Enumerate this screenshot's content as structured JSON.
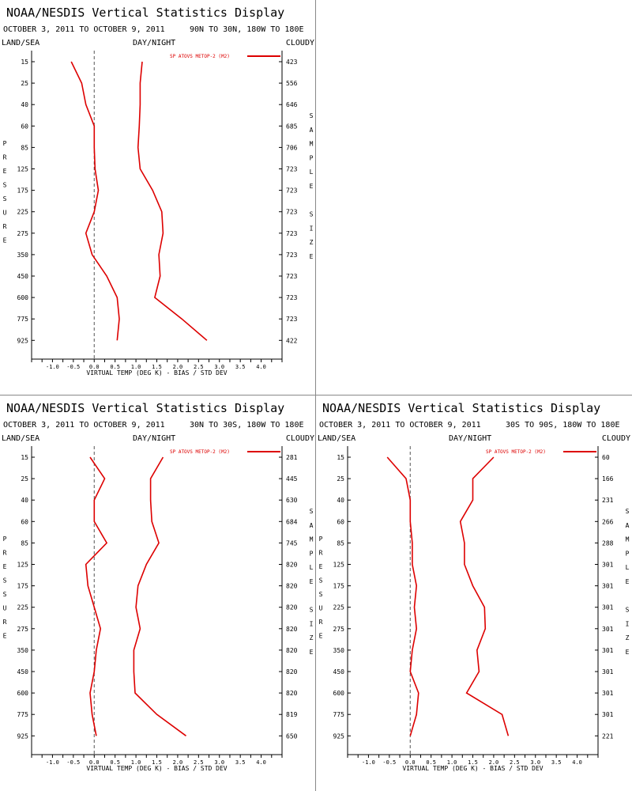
{
  "colors": {
    "series": "#dd0000",
    "axis": "#000000",
    "zero_line": "#555555"
  },
  "panels": [
    {
      "title": "NOAA/NESDIS Vertical Statistics Display",
      "dates": "OCTOBER 3, 2011 TO OCTOBER 9, 2011",
      "region": "90N TO 30N, 180W TO 180E",
      "land_sea": "LAND/SEA",
      "day_night": "DAY/NIGHT",
      "cloudy": "CLOUDY",
      "legend": "SP ATOVS METOP-2 (M2)",
      "xlabel": "VIRTUAL TEMP (DEG K) - BIAS / STD DEV",
      "ylabel_left": "PRESSURE",
      "ylabel_right": "SAMPLE SIZE"
    },
    {
      "title": "NOAA/NESDIS Vertical Statistics Display",
      "dates": "OCTOBER 3, 2011 TO OCTOBER 9, 2011",
      "region": "30N TO 30S, 180W TO 180E",
      "land_sea": "LAND/SEA",
      "day_night": "DAY/NIGHT",
      "cloudy": "CLOUDY",
      "legend": "SP ATOVS METOP-2 (M2)",
      "xlabel": "VIRTUAL TEMP (DEG K) - BIAS / STD DEV",
      "ylabel_left": "PRESSURE",
      "ylabel_right": "SAMPLE SIZE"
    },
    {
      "title": "NOAA/NESDIS Vertical Statistics Display",
      "dates": "OCTOBER 3, 2011 TO OCTOBER 9, 2011",
      "region": "30S TO 90S, 180W TO 180E",
      "land_sea": "LAND/SEA",
      "day_night": "DAY/NIGHT",
      "cloudy": "CLOUDY",
      "legend": "SP ATOVS METOP-2 (M2)",
      "xlabel": "VIRTUAL TEMP (DEG K) - BIAS / STD DEV",
      "ylabel_left": "PRESSURE",
      "ylabel_right": "SAMPLE SIZE"
    }
  ],
  "chart_data": [
    {
      "type": "line",
      "xlim": [
        -1.5,
        4.5
      ],
      "xticks": [
        -1.0,
        -0.5,
        0.0,
        0.5,
        1.0,
        1.5,
        2.0,
        2.5,
        3.0,
        3.5,
        4.0
      ],
      "pressure_levels": [
        15,
        25,
        40,
        60,
        85,
        125,
        175,
        225,
        275,
        350,
        450,
        600,
        775,
        925
      ],
      "series": [
        {
          "name": "bias",
          "values": [
            -0.55,
            -0.3,
            -0.2,
            0.0,
            0.0,
            0.02,
            0.1,
            0.0,
            -0.2,
            -0.05,
            0.3,
            0.55,
            0.6,
            0.55
          ]
        },
        {
          "name": "std_dev",
          "values": [
            1.15,
            1.1,
            1.1,
            1.08,
            1.05,
            1.1,
            1.4,
            1.62,
            1.65,
            1.55,
            1.58,
            1.45,
            2.1,
            2.7
          ]
        }
      ],
      "sample_size": [
        423,
        556,
        646,
        685,
        706,
        723,
        723,
        723,
        723,
        723,
        723,
        723,
        723,
        422
      ]
    },
    {
      "type": "line",
      "xlim": [
        -1.5,
        4.5
      ],
      "xticks": [
        -1.0,
        -0.5,
        0.0,
        0.5,
        1.0,
        1.5,
        2.0,
        2.5,
        3.0,
        3.5,
        4.0
      ],
      "pressure_levels": [
        15,
        25,
        40,
        60,
        85,
        125,
        175,
        225,
        275,
        350,
        450,
        600,
        775,
        925
      ],
      "series": [
        {
          "name": "bias",
          "values": [
            -0.1,
            0.25,
            0.0,
            0.0,
            0.3,
            -0.2,
            -0.15,
            0.0,
            0.15,
            0.05,
            0.0,
            -0.1,
            -0.05,
            0.05
          ]
        },
        {
          "name": "std_dev",
          "values": [
            1.65,
            1.35,
            1.35,
            1.38,
            1.55,
            1.25,
            1.05,
            1.0,
            1.1,
            0.95,
            0.95,
            0.98,
            1.5,
            2.2
          ]
        }
      ],
      "sample_size": [
        281,
        445,
        630,
        684,
        745,
        820,
        820,
        820,
        820,
        820,
        820,
        820,
        819,
        650
      ]
    },
    {
      "type": "line",
      "xlim": [
        -1.5,
        4.5
      ],
      "xticks": [
        -1.0,
        -0.5,
        0.0,
        0.5,
        1.0,
        1.5,
        2.0,
        2.5,
        3.0,
        3.5,
        4.0
      ],
      "pressure_levels": [
        15,
        25,
        40,
        60,
        85,
        125,
        175,
        225,
        275,
        350,
        450,
        600,
        775,
        925
      ],
      "series": [
        {
          "name": "bias",
          "values": [
            -0.55,
            -0.1,
            0.0,
            0.0,
            0.05,
            0.05,
            0.15,
            0.1,
            0.15,
            0.05,
            0.0,
            0.2,
            0.15,
            0.0
          ]
        },
        {
          "name": "std_dev",
          "values": [
            2.0,
            1.5,
            1.5,
            1.2,
            1.3,
            1.3,
            1.5,
            1.78,
            1.8,
            1.6,
            1.65,
            1.35,
            2.2,
            2.35
          ]
        }
      ],
      "sample_size": [
        60,
        166,
        231,
        266,
        288,
        301,
        301,
        301,
        301,
        301,
        301,
        301,
        301,
        221
      ]
    }
  ]
}
